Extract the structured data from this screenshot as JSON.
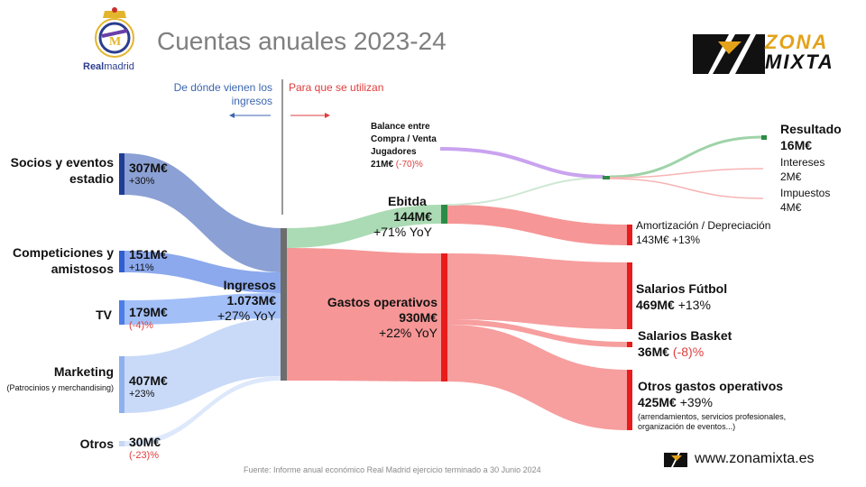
{
  "title": "Cuentas anuales 2023-24",
  "brand_left": {
    "text_bold": "Real",
    "text_rest": "madrid"
  },
  "brand_right": {
    "word1": "ZONA",
    "word2": "MIXTA"
  },
  "direction": {
    "incoming": "De dónde vienen los ingresos",
    "outgoing": "Para que se utilizan"
  },
  "sources": [
    {
      "label": "Socios y eventos estadio",
      "sub": "",
      "value": "307M€",
      "change": "+30%",
      "negative": false
    },
    {
      "label": "Competiciones y amistosos",
      "sub": "",
      "value": "151M€",
      "change": "+11%",
      "negative": false
    },
    {
      "label": "TV",
      "sub": "",
      "value": "179M€",
      "change": "(-4)%",
      "negative": true
    },
    {
      "label": "Marketing",
      "sub": "(Patrocinios y merchandising)",
      "value": "407M€",
      "change": "+23%",
      "negative": false
    },
    {
      "label": "Otros",
      "sub": "",
      "value": "30M€",
      "change": "(-23)%",
      "negative": true
    }
  ],
  "ingresos": {
    "label": "Ingresos",
    "value": "1.073M€",
    "change": "+27% YoY"
  },
  "ebitda": {
    "label": "Ebitda",
    "value": "144M€",
    "change": "+71% YoY"
  },
  "gastos": {
    "label": "Gastos operativos",
    "value": "930M€",
    "change": "+22% YoY"
  },
  "balance": {
    "line1": "Balance entre",
    "line2": "Compra / Venta",
    "line3": "Jugadores",
    "value": "21M€",
    "change": "(-70)%"
  },
  "resultado": {
    "label": "Resultado",
    "value": "16M€"
  },
  "intereses": {
    "label": "Intereses",
    "value": "2M€"
  },
  "impuestos": {
    "label": "Impuestos",
    "value": "4M€"
  },
  "amortizacion": {
    "label": "Amortización / Depreciación",
    "value": "143M€",
    "change": "+13%"
  },
  "salarios_futbol": {
    "label": "Salarios Fútbol",
    "value": "469M€",
    "change": "+13%"
  },
  "salarios_basket": {
    "label": "Salarios Basket",
    "value": "36M€",
    "change": "(-8)%"
  },
  "otros_gastos": {
    "label": "Otros gastos operativos",
    "value": "425M€",
    "change": "+39%",
    "note": "(arrendamientos, servicios profesionales, organización de eventos...)"
  },
  "source_note": "Fuente: Informe anual económico Real Madrid ejercicio terminado a 30 Junio 2024",
  "website": "www.zonamixta.es",
  "colors": {
    "socios": "#2f4fa8",
    "competiciones": "#3e6fdb",
    "tv": "#5b8ff0",
    "marketing": "#9cb9f3",
    "otros": "#c9d8f7",
    "ebitda": "#2e8b45",
    "gastos": "#e81c1c",
    "balance": "#9b59d9",
    "node_grey": "#6d6d6d"
  },
  "icons": [
    "real-madrid-crest-icon",
    "zona-mixta-logo-icon",
    "zona-mixta-small-icon"
  ]
}
